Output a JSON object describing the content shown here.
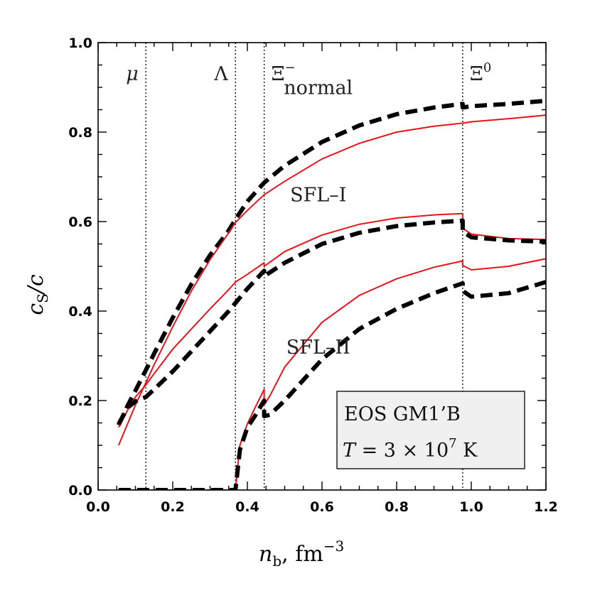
{
  "chart_data": {
    "type": "line",
    "xlabel": "n_b, fm^-3",
    "xlabel_main": "n",
    "xlabel_sub": "b",
    "xlabel_unit": ", fm",
    "xlabel_exp": "−3",
    "ylabel": "c_S/c",
    "ylabel_main": "c",
    "ylabel_sub": "S",
    "ylabel_rest": "/c",
    "xlim": [
      0.0,
      1.2
    ],
    "ylim": [
      0.0,
      1.0
    ],
    "x_ticks": [
      "0.0",
      "0.2",
      "0.4",
      "0.6",
      "0.8",
      "1.0",
      "1.2"
    ],
    "y_ticks": [
      "0.0",
      "0.2",
      "0.4",
      "0.6",
      "0.8",
      "1.0"
    ],
    "grid": false,
    "thresholds": [
      {
        "x": 0.128,
        "label": "μ"
      },
      {
        "x": 0.368,
        "label": "Λ"
      },
      {
        "x": 0.445,
        "label": "Ξ",
        "sup": "−"
      },
      {
        "x": 0.977,
        "label": "Ξ",
        "sup": "0"
      }
    ],
    "curve_labels": [
      {
        "text": "normal",
        "x": 0.59,
        "y": 0.885
      },
      {
        "text": "SFL–I",
        "x": 0.59,
        "y": 0.645
      },
      {
        "text": "SFL–II",
        "x": 0.59,
        "y": 0.305
      }
    ],
    "info_box": {
      "line1": "EOS GM1’B",
      "line2_var": "T",
      "line2_mid": " = 3 × 10",
      "line2_exp": "7",
      "line2_unit": " K"
    },
    "colors": {
      "red": "#e8141a",
      "black": "#000000"
    },
    "series": [
      {
        "style": "black-dashed",
        "x": [
          0.055,
          0.08,
          0.1,
          0.128,
          0.15,
          0.2,
          0.25,
          0.3,
          0.35,
          0.368,
          0.4,
          0.445,
          0.5,
          0.6,
          0.7,
          0.8,
          0.9,
          0.977,
          0.977,
          1.0,
          1.1,
          1.2
        ],
        "y": [
          0.145,
          0.19,
          0.222,
          0.268,
          0.305,
          0.385,
          0.46,
          0.525,
          0.58,
          0.605,
          0.645,
          0.687,
          0.725,
          0.778,
          0.815,
          0.84,
          0.855,
          0.863,
          0.855,
          0.858,
          0.863,
          0.87
        ]
      },
      {
        "style": "red-solid",
        "x": [
          0.055,
          0.08,
          0.1,
          0.128,
          0.15,
          0.2,
          0.25,
          0.3,
          0.35,
          0.368,
          0.4,
          0.445,
          0.5,
          0.6,
          0.7,
          0.8,
          0.9,
          0.977,
          1.0,
          1.1,
          1.2
        ],
        "y": [
          0.1,
          0.15,
          0.19,
          0.24,
          0.28,
          0.365,
          0.445,
          0.515,
          0.575,
          0.598,
          0.625,
          0.66,
          0.69,
          0.74,
          0.775,
          0.8,
          0.813,
          0.82,
          0.823,
          0.83,
          0.838
        ]
      },
      {
        "style": "red-solid",
        "x": [
          0.055,
          0.08,
          0.1,
          0.128,
          0.15,
          0.2,
          0.25,
          0.3,
          0.35,
          0.368,
          0.4,
          0.445,
          0.445,
          0.5,
          0.6,
          0.7,
          0.8,
          0.9,
          0.977,
          0.977,
          1.0,
          1.1,
          1.2
        ],
        "y": [
          0.14,
          0.18,
          0.208,
          0.235,
          0.26,
          0.315,
          0.36,
          0.405,
          0.448,
          0.465,
          0.482,
          0.508,
          0.5,
          0.533,
          0.57,
          0.594,
          0.608,
          0.615,
          0.618,
          0.585,
          0.572,
          0.562,
          0.56
        ]
      },
      {
        "style": "black-dashed",
        "x": [
          0.055,
          0.08,
          0.1,
          0.128,
          0.15,
          0.2,
          0.25,
          0.3,
          0.35,
          0.368,
          0.4,
          0.445,
          0.445,
          0.5,
          0.6,
          0.7,
          0.8,
          0.9,
          0.977,
          0.977,
          1.0,
          1.1,
          1.2
        ],
        "y": [
          0.148,
          0.185,
          0.198,
          0.208,
          0.225,
          0.265,
          0.31,
          0.355,
          0.4,
          0.418,
          0.45,
          0.49,
          0.478,
          0.508,
          0.55,
          0.575,
          0.59,
          0.598,
          0.602,
          0.578,
          0.565,
          0.558,
          0.555
        ]
      },
      {
        "style": "red-solid",
        "x": [
          0.055,
          0.2,
          0.368,
          0.368,
          0.38,
          0.4,
          0.42,
          0.445,
          0.445,
          0.46,
          0.5,
          0.6,
          0.7,
          0.8,
          0.9,
          0.977,
          0.977,
          1.0,
          1.1,
          1.2
        ],
        "y": [
          0.0,
          0.0,
          0.0,
          0.0,
          0.1,
          0.148,
          0.183,
          0.225,
          0.19,
          0.21,
          0.275,
          0.375,
          0.435,
          0.472,
          0.498,
          0.512,
          0.502,
          0.492,
          0.5,
          0.517
        ]
      },
      {
        "style": "black-dashed",
        "x": [
          0.055,
          0.2,
          0.368,
          0.368,
          0.38,
          0.4,
          0.42,
          0.445,
          0.445,
          0.46,
          0.5,
          0.6,
          0.7,
          0.8,
          0.9,
          0.977,
          0.977,
          1.0,
          1.1,
          1.2
        ],
        "y": [
          0.0,
          0.0,
          0.0,
          0.0,
          0.09,
          0.14,
          0.165,
          0.2,
          0.165,
          0.168,
          0.2,
          0.292,
          0.36,
          0.405,
          0.44,
          0.462,
          0.445,
          0.432,
          0.44,
          0.465
        ]
      }
    ]
  }
}
